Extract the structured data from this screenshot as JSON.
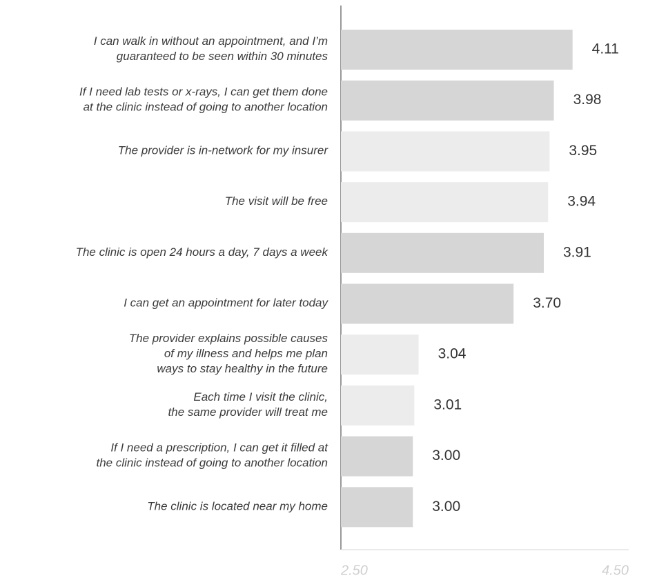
{
  "chart_data": {
    "type": "hbar",
    "categories": [
      "I can walk in without an appointment, and I’m\nguaranteed to be seen within 30 minutes",
      "If I need lab tests or x-rays, I can get them done\nat the clinic instead of going to another location",
      "The provider is in-network for my insurer",
      "The visit will be free",
      "The clinic is open 24 hours a day, 7 days a week",
      "I can get an appointment for later today",
      "The provider explains possible causes\nof my illness and helps me plan\nways to stay healthy in the future",
      "Each time I visit the clinic,\nthe same provider will treat me",
      "If I need a prescription, I can get it filled at\nthe clinic instead of going to another location",
      "The clinic is located near my home"
    ],
    "values": [
      4.11,
      3.98,
      3.95,
      3.94,
      3.91,
      3.7,
      3.04,
      3.01,
      3.0,
      3.0
    ],
    "value_labels": [
      "4.11",
      "3.98",
      "3.95",
      "3.94",
      "3.91",
      "3.70",
      "3.04",
      "3.01",
      "3.00",
      "3.00"
    ],
    "colors": [
      "#d6d6d6",
      "#d6d6d6",
      "#ececec",
      "#ececec",
      "#d6d6d6",
      "#d6d6d6",
      "#ececec",
      "#ececec",
      "#d6d6d6",
      "#d6d6d6"
    ],
    "xlim": [
      2.5,
      4.5
    ],
    "xticks": [
      {
        "value": 2.5,
        "label": "2.50"
      },
      {
        "value": 4.5,
        "label": "4.50"
      }
    ]
  }
}
